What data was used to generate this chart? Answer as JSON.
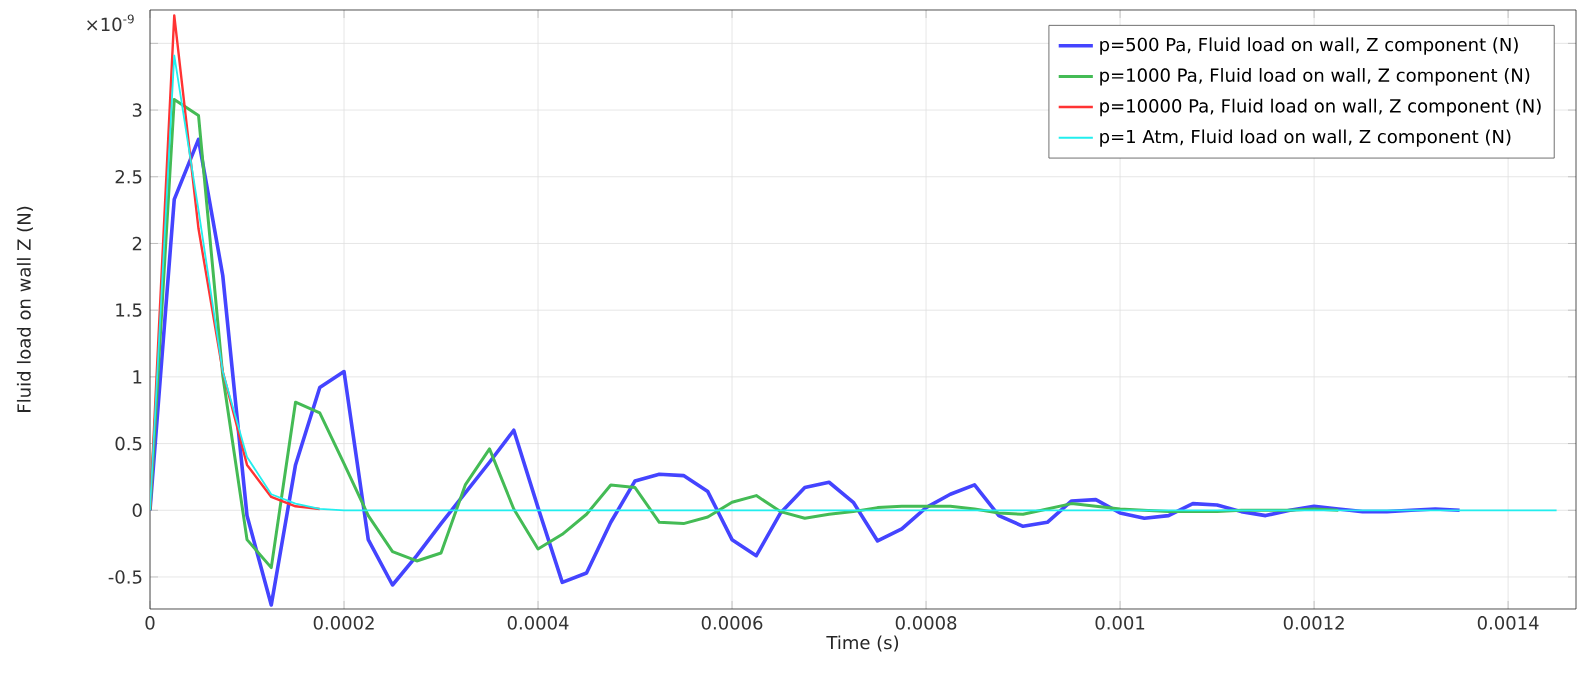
{
  "chart_data": {
    "type": "line",
    "xlabel": "Time (s)",
    "ylabel": "Fluid load on wall Z (N)",
    "annotations": [
      "×10$^{-9}$"
    ],
    "x": [
      0,
      2.5e-05,
      5e-05,
      7.5e-05,
      0.0001,
      0.000125,
      0.00015,
      0.000175,
      0.0002,
      0.000225,
      0.00025,
      0.000275,
      0.0003,
      0.000325,
      0.00035,
      0.000375,
      0.0004,
      0.000425,
      0.00045,
      0.000475,
      0.0005,
      0.000525,
      0.00055,
      0.000575,
      0.0006,
      0.000625,
      0.00065,
      0.000675,
      0.0007,
      0.000725,
      0.00075,
      0.000775,
      0.0008,
      0.000825,
      0.00085,
      0.000875,
      0.0009,
      0.000925,
      0.00095,
      0.000975,
      0.001,
      0.001025,
      0.00105,
      0.001075,
      0.0011,
      0.001125,
      0.00115,
      0.001175,
      0.0012,
      0.001225,
      0.00125,
      0.001275,
      0.0013,
      0.001325,
      0.00135,
      0.001375,
      0.0014,
      0.001425,
      0.00145
    ],
    "series": [
      {
        "name": "p=500 Pa, Fluid load on wall, Z component (N)",
        "color": "#4444ff",
        "values": [
          0,
          2.33,
          2.78,
          1.76,
          -0.04,
          -0.71,
          0.34,
          0.92,
          1.04,
          -0.22,
          -0.56,
          -0.34,
          -0.1,
          0.13,
          0.36,
          0.6,
          0.02,
          -0.54,
          -0.47,
          -0.09,
          0.22,
          0.27,
          0.26,
          0.14,
          -0.22,
          -0.34,
          -0.02,
          0.17,
          0.21,
          0.06,
          -0.23,
          -0.14,
          0.02,
          0.12,
          0.19,
          -0.04,
          -0.12,
          -0.09,
          0.07,
          0.08,
          -0.02,
          -0.06,
          -0.04,
          0.05,
          0.04,
          -0.01,
          -0.04,
          0,
          0.03,
          0.01,
          -0.01,
          -0.01,
          0,
          0.01,
          0,
          null,
          null,
          null,
          null
        ]
      },
      {
        "name": "p=1000 Pa, Fluid load on wall, Z component (N)",
        "color": "#44bb55",
        "values": [
          0,
          3.08,
          2.96,
          1.01,
          -0.22,
          -0.43,
          0.81,
          0.73,
          0.35,
          -0.04,
          -0.31,
          -0.38,
          -0.32,
          0.19,
          0.46,
          0.01,
          -0.29,
          -0.18,
          -0.03,
          0.19,
          0.17,
          -0.09,
          -0.1,
          -0.05,
          0.06,
          0.11,
          -0.01,
          -0.06,
          -0.03,
          -0.01,
          0.02,
          0.03,
          0.03,
          0.03,
          0.01,
          -0.02,
          -0.03,
          0.01,
          0.05,
          0.03,
          0.01,
          0,
          -0.01,
          -0.01,
          -0.01,
          0,
          0,
          0,
          0.01,
          0,
          null,
          null,
          null,
          null,
          null,
          null,
          null,
          null,
          null
        ]
      },
      {
        "name": "p=10000 Pa, Fluid load on wall, Z component (N)",
        "color": "#ff3333",
        "values": [
          0,
          3.71,
          2.11,
          1.04,
          0.34,
          0.1,
          0.03,
          0.01,
          null,
          null,
          null,
          null,
          null,
          null,
          null,
          null,
          null,
          null,
          null,
          null,
          null,
          null,
          null,
          null,
          null,
          null,
          null,
          null,
          null,
          null,
          null,
          null,
          null,
          null,
          null,
          null,
          null,
          null,
          null,
          null,
          null,
          null,
          null,
          null,
          null,
          null,
          null,
          null,
          null,
          null,
          null,
          null,
          null,
          null,
          null,
          null,
          null,
          null,
          null
        ]
      },
      {
        "name": "p=1 Atm, Fluid load on wall, Z component (N)",
        "color": "#22eeee",
        "values": [
          0,
          3.41,
          2.25,
          1.04,
          0.4,
          0.12,
          0.05,
          0.01,
          0,
          0,
          0,
          0,
          0,
          0,
          0,
          0,
          0,
          0,
          0,
          0,
          0,
          0,
          0,
          0,
          0,
          0,
          0,
          0,
          0,
          0,
          0,
          0,
          0,
          0,
          0,
          0,
          0,
          0,
          0,
          0,
          0,
          0,
          0,
          0,
          0,
          0,
          0,
          0,
          0,
          0,
          0,
          0,
          0,
          0,
          0,
          0,
          0,
          0,
          0
        ]
      }
    ],
    "xlim": [
      0,
      0.00147
    ],
    "ylim": [
      -0.74,
      3.75
    ],
    "xticks": [
      0,
      0.0002,
      0.0004,
      0.0006,
      0.0008,
      0.001,
      0.0012,
      0.0014
    ],
    "yticks": [
      -0.5,
      0,
      0.5,
      1,
      1.5,
      2,
      2.5,
      3,
      {
        "value": 3.5,
        "label": null
      }
    ],
    "grid": true,
    "legend": "top right",
    "marker": "none",
    "line_style": "solid"
  }
}
